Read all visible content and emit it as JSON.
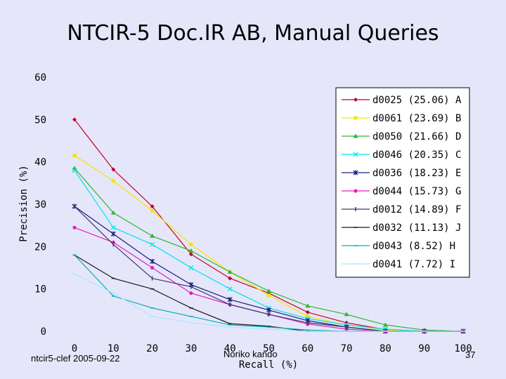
{
  "slide": {
    "title": "NTCIR-5 Doc.IR AB,  Manual Queries",
    "footer_left": "ntcir5-clef 2005-09-22",
    "footer_center": "Noriko kando",
    "page_number": "37"
  },
  "chart_data": {
    "type": "line",
    "xlabel": "Recall (%)",
    "ylabel": "Precision (%)",
    "x": [
      0,
      10,
      20,
      30,
      40,
      50,
      60,
      70,
      80,
      90,
      100
    ],
    "xticks": [
      "0",
      "10",
      "20",
      "30",
      "40",
      "50",
      "60",
      "70",
      "80",
      "90",
      "100"
    ],
    "yticks": [
      "0",
      "10",
      "20",
      "30",
      "40",
      "50",
      "60"
    ],
    "xlim": [
      0,
      100
    ],
    "ylim": [
      0,
      60
    ],
    "grid": false,
    "legend_position": "top-right",
    "series": [
      {
        "name": "d0025 (25.06) A",
        "color": "#C0002A",
        "marker": "diamond",
        "values": [
          50,
          38.2,
          29.5,
          18.2,
          12.5,
          9,
          4.5,
          2,
          0.4,
          0,
          0
        ]
      },
      {
        "name": "d0061 (23.69) B",
        "color": "#F2E600",
        "marker": "square",
        "values": [
          41.5,
          35.5,
          28.5,
          20.5,
          14,
          8.5,
          3.5,
          1.5,
          0.3,
          0,
          0
        ]
      },
      {
        "name": "d0050 (21.66) D",
        "color": "#2EB82E",
        "marker": "triangle",
        "values": [
          38.5,
          28,
          22.5,
          19,
          14,
          9.5,
          6,
          4,
          1.5,
          0.3,
          0
        ]
      },
      {
        "name": "d0046 (20.35) C",
        "color": "#00E5E5",
        "marker": "x",
        "values": [
          38,
          24.5,
          20.5,
          15,
          10,
          5.5,
          3,
          1.5,
          0.5,
          0,
          0
        ]
      },
      {
        "name": "d0036 (18.23) E",
        "color": "#1A1A80",
        "marker": "star",
        "values": [
          29.5,
          23,
          16.5,
          11,
          7.5,
          5,
          2.5,
          1,
          0,
          0,
          0
        ]
      },
      {
        "name": "d0044 (15.73) G",
        "color": "#E020C0",
        "marker": "circle",
        "values": [
          24.5,
          21,
          15,
          9,
          6.3,
          4,
          1.7,
          0.5,
          0,
          0,
          0
        ]
      },
      {
        "name": "d0012 (14.89) F",
        "color": "#3A3A6A",
        "marker": "bar",
        "values": [
          29.5,
          20.5,
          12.5,
          10.5,
          6.3,
          4,
          2,
          1,
          0,
          0,
          0
        ]
      },
      {
        "name": "d0032 (11.13) J",
        "color": "#1A1A1A",
        "marker": "dash",
        "values": [
          18,
          12.5,
          10,
          5.5,
          1.8,
          1.2,
          0,
          0,
          0,
          0,
          0
        ]
      },
      {
        "name": "d0043 (8.52) H",
        "color": "#00B0B0",
        "marker": "dash",
        "values": [
          18,
          8.3,
          5.5,
          3.5,
          1.5,
          1,
          0.3,
          0,
          0,
          0,
          0
        ]
      },
      {
        "name": "d0041 (7.72) I",
        "color": "#A8E8FF",
        "marker": "dash",
        "values": [
          13.5,
          9,
          3.5,
          2,
          1,
          0.5,
          0,
          0,
          0,
          0,
          0
        ]
      }
    ]
  }
}
